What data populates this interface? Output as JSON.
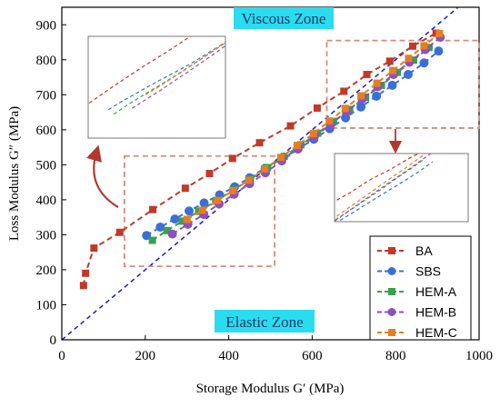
{
  "chart_data": {
    "type": "line",
    "xlabel": "Storage Modulus G′ (MPa)",
    "ylabel": "Loss Modulus G″ (MPa)",
    "xlim": [
      0,
      1000
    ],
    "ylim": [
      0,
      950
    ],
    "xticks": [
      0,
      200,
      400,
      600,
      800,
      1000
    ],
    "yticks": [
      0,
      100,
      200,
      300,
      400,
      500,
      600,
      700,
      800,
      900
    ],
    "xtick_labels": [
      "0",
      "200",
      "400",
      "600",
      "800",
      "1000"
    ],
    "ytick_labels": [
      "0",
      "100",
      "200",
      "300",
      "400",
      "500",
      "600",
      "700",
      "800",
      "900"
    ],
    "grid": false,
    "legend_position": "bottom-right",
    "reference_line": {
      "style": "dashed",
      "color": "#1a1acd",
      "from": [
        0,
        0
      ],
      "to": [
        1000,
        1000
      ]
    },
    "annotations": {
      "viscous_zone": "Viscous Zone",
      "elastic_zone": "Elastic Zone"
    },
    "zoom_regions": [
      {
        "x": [
          150,
          510
        ],
        "y": [
          210,
          525
        ]
      },
      {
        "x": [
          635,
          1000
        ],
        "y": [
          605,
          855
        ]
      }
    ],
    "series": [
      {
        "name": "BA",
        "color": "#c0392b",
        "marker": "square",
        "x": [
          52,
          57,
          77,
          139,
          218,
          296,
          354,
          409,
          474,
          548,
          612,
          676,
          731,
          786,
          841,
          897
        ],
        "y": [
          155,
          190,
          262,
          307,
          372,
          433,
          475,
          518,
          563,
          611,
          662,
          710,
          758,
          796,
          839,
          876
        ]
      },
      {
        "name": "SBS",
        "color": "#3a6fd8",
        "marker": "circle",
        "x": [
          203,
          236,
          271,
          305,
          341,
          378,
          414,
          450,
          487,
          527,
          566,
          604,
          642,
          680,
          717,
          754,
          792,
          830,
          868,
          903
        ],
        "y": [
          298,
          322,
          345,
          368,
          391,
          414,
          437,
          463,
          490,
          516,
          545,
          573,
          603,
          634,
          665,
          696,
          727,
          758,
          791,
          825
        ]
      },
      {
        "name": "HEM-A",
        "color": "#3aa04a",
        "marker": "square",
        "x": [
          217,
          252,
          289,
          328,
          369,
          411,
          452,
          493,
          533,
          573,
          613,
          651,
          690,
          728,
          766,
          804,
          843,
          880
        ],
        "y": [
          284,
          312,
          339,
          367,
          396,
          428,
          459,
          492,
          524,
          557,
          590,
          624,
          658,
          693,
          727,
          764,
          799,
          835
        ]
      },
      {
        "name": "HEM-B",
        "color": "#8e4fc0",
        "marker": "circle",
        "x": [
          265,
          302,
          340,
          377,
          413,
          450,
          488,
          527,
          566,
          605,
          644,
          682,
          720,
          757,
          795,
          833,
          871,
          907
        ],
        "y": [
          302,
          330,
          358,
          388,
          416,
          446,
          477,
          511,
          545,
          580,
          615,
          652,
          688,
          723,
          758,
          793,
          829,
          864
        ]
      },
      {
        "name": "HEM-C",
        "color": "#e67e22",
        "marker": "square",
        "x": [
          300,
          337,
          373,
          410,
          448,
          486,
          525,
          564,
          603,
          641,
          679,
          717,
          755,
          793,
          831,
          868,
          905
        ],
        "y": [
          344,
          370,
          398,
          426,
          456,
          488,
          521,
          555,
          589,
          625,
          661,
          697,
          733,
          769,
          804,
          840,
          875
        ]
      }
    ]
  }
}
